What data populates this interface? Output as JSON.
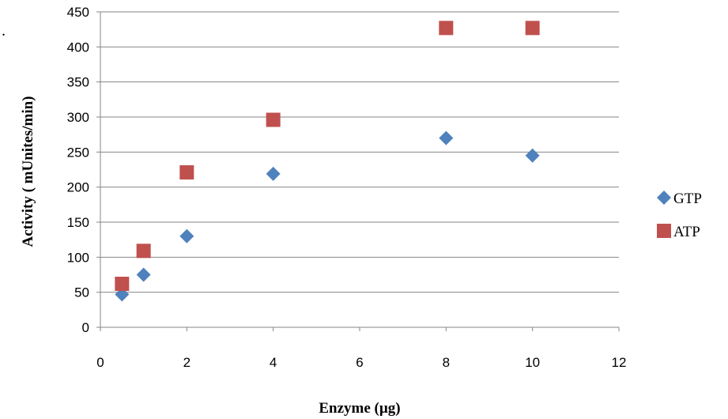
{
  "chart_data": {
    "type": "scatter",
    "title": "",
    "xlabel": "Enzyme (µg)",
    "ylabel": "Activity ( mUnites/min)",
    "xlim": [
      0,
      12
    ],
    "ylim": [
      0,
      450
    ],
    "xticks": [
      0,
      2,
      4,
      6,
      8,
      10,
      12
    ],
    "yticks": [
      0,
      50,
      100,
      150,
      200,
      250,
      300,
      350,
      400,
      450
    ],
    "grid": "horizontal",
    "legend_position": "right",
    "series": [
      {
        "name": "GTP",
        "marker": "diamond",
        "color": "#4F81BD",
        "x": [
          0.5,
          1,
          2,
          4,
          8,
          10
        ],
        "y": [
          47,
          75,
          130,
          219,
          270,
          245
        ]
      },
      {
        "name": "ATP",
        "marker": "square",
        "color": "#C0504D",
        "x": [
          0.5,
          1,
          2,
          4,
          8,
          10
        ],
        "y": [
          62,
          109,
          221,
          296,
          427,
          427
        ]
      }
    ]
  },
  "stray_mark": "."
}
